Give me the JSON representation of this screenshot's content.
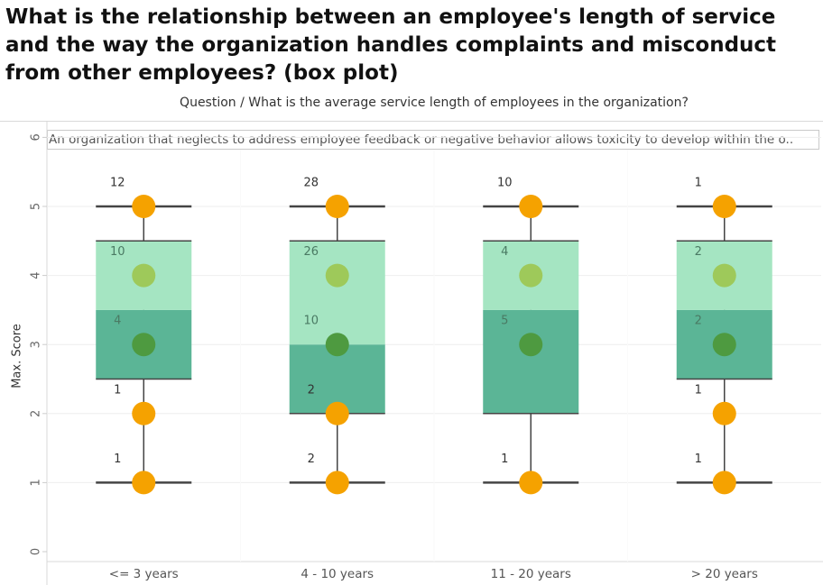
{
  "title": "What is the relationship between an employee's length of service and the way the organization handles complaints and misconduct from other employees? (box plot)",
  "header": {
    "text": "Question  /  What is the average service length of employees in the organization?"
  },
  "subtitle": "An organization that neglects to address employee feedback or negative behavior allows toxicity to develop within the o..",
  "colors": {
    "whisker_dot": "#F5A200",
    "box_lower": "#5BB596",
    "box_upper": "#A5E5C2",
    "mid_dot_dark": "#4E9A40",
    "mid_dot_light": "#9EC95A"
  },
  "chart_data": {
    "type": "box",
    "ylabel": "Max. Score",
    "ylim": [
      0,
      6
    ],
    "yticks": [
      0,
      1,
      2,
      3,
      4,
      5,
      6
    ],
    "categories": [
      "<= 3 years",
      "4 - 10 years",
      "11 - 20 years",
      "> 20 years"
    ],
    "boxes": [
      {
        "min": 1,
        "q1": 2.5,
        "median": 3.5,
        "q3": 4.5,
        "max": 5,
        "points": [
          {
            "y": 5,
            "n": 12
          },
          {
            "y": 4,
            "n": 10
          },
          {
            "y": 3,
            "n": 4
          },
          {
            "y": 2,
            "n": 1
          },
          {
            "y": 1,
            "n": 1
          }
        ]
      },
      {
        "min": 1,
        "q1": 2,
        "median": 3,
        "q3": 4.5,
        "max": 5,
        "points": [
          {
            "y": 5,
            "n": 28
          },
          {
            "y": 4,
            "n": 26
          },
          {
            "y": 3,
            "n": 10
          },
          {
            "y": 2,
            "n": 2
          },
          {
            "y": 1,
            "n": 2
          }
        ]
      },
      {
        "min": 1,
        "q1": 2,
        "median": 3.5,
        "q3": 4.5,
        "max": 5,
        "points": [
          {
            "y": 5,
            "n": 10
          },
          {
            "y": 4,
            "n": 4
          },
          {
            "y": 3,
            "n": 5
          },
          {
            "y": 1,
            "n": 1
          }
        ]
      },
      {
        "min": 1,
        "q1": 2.5,
        "median": 3.5,
        "q3": 4.5,
        "max": 5,
        "points": [
          {
            "y": 5,
            "n": 1
          },
          {
            "y": 4,
            "n": 2
          },
          {
            "y": 3,
            "n": 2
          },
          {
            "y": 2,
            "n": 1
          },
          {
            "y": 1,
            "n": 1
          }
        ]
      }
    ]
  }
}
